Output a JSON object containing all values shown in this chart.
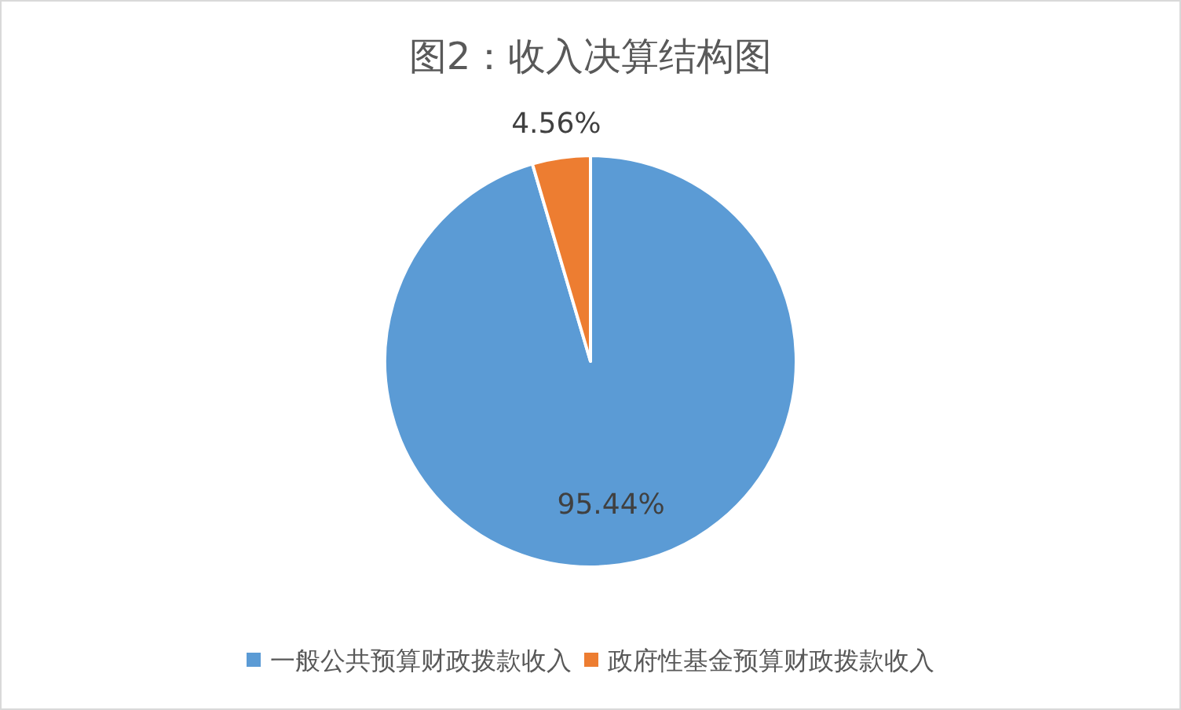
{
  "chart_data": {
    "type": "pie",
    "title": "图2：收入决算结构图",
    "categories": [
      "一般公共预算财政拨款收入",
      "政府性基金预算财政拨款收入"
    ],
    "values": [
      95.44,
      4.56
    ],
    "colors": [
      "#5b9bd5",
      "#ed7d31"
    ],
    "value_labels": [
      "95.44%",
      "4.56%"
    ],
    "legend": "bottom"
  }
}
